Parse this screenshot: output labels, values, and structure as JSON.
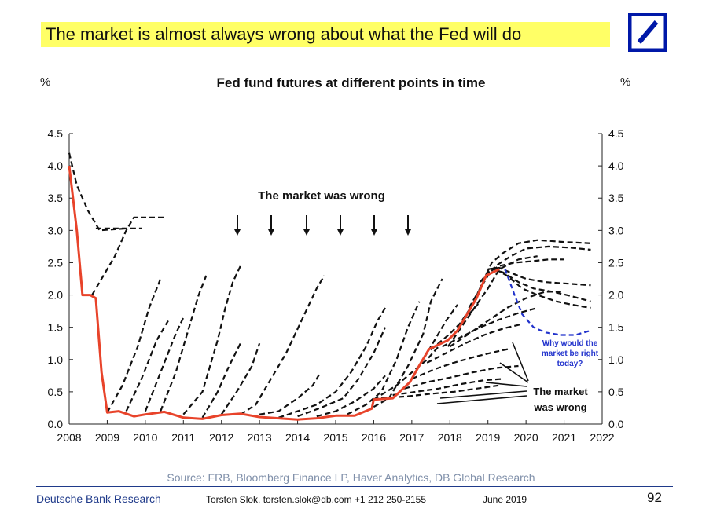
{
  "header": {
    "headline": "The market is almost always wrong about what the Fed will do"
  },
  "logo": {
    "name": "deutsche-bank-logo",
    "color": "#0018a8"
  },
  "chart_data": {
    "type": "line",
    "title": "Fed fund futures at different points in time",
    "ylabel_left": "%",
    "ylabel_right": "%",
    "xlim": [
      2008,
      2022
    ],
    "ylim": [
      0,
      4.5
    ],
    "x_ticks": [
      "2008",
      "2009",
      "2010",
      "2011",
      "2012",
      "2013",
      "2014",
      "2015",
      "2016",
      "2017",
      "2018",
      "2019",
      "2020",
      "2021",
      "2022"
    ],
    "y_ticks": [
      "0.0",
      "0.5",
      "1.0",
      "1.5",
      "2.0",
      "2.5",
      "3.0",
      "3.5",
      "4.0",
      "4.5"
    ],
    "grid": false,
    "colors": {
      "actual": "#e8432a",
      "futures": "#111111",
      "current": "#2233cc"
    },
    "actual": [
      [
        2008.0,
        4.0
      ],
      [
        2008.2,
        3.0
      ],
      [
        2008.35,
        2.0
      ],
      [
        2008.55,
        2.0
      ],
      [
        2008.7,
        1.95
      ],
      [
        2008.85,
        0.8
      ],
      [
        2009.0,
        0.18
      ],
      [
        2009.3,
        0.2
      ],
      [
        2009.7,
        0.12
      ],
      [
        2010.0,
        0.15
      ],
      [
        2010.5,
        0.19
      ],
      [
        2011.0,
        0.1
      ],
      [
        2011.5,
        0.08
      ],
      [
        2012.0,
        0.14
      ],
      [
        2012.5,
        0.16
      ],
      [
        2013.0,
        0.11
      ],
      [
        2013.5,
        0.09
      ],
      [
        2014.0,
        0.07
      ],
      [
        2014.5,
        0.09
      ],
      [
        2015.0,
        0.13
      ],
      [
        2015.5,
        0.13
      ],
      [
        2015.95,
        0.24
      ],
      [
        2016.0,
        0.38
      ],
      [
        2016.5,
        0.4
      ],
      [
        2016.95,
        0.65
      ],
      [
        2017.2,
        0.91
      ],
      [
        2017.45,
        1.16
      ],
      [
        2017.95,
        1.3
      ],
      [
        2018.2,
        1.45
      ],
      [
        2018.45,
        1.7
      ],
      [
        2018.7,
        1.95
      ],
      [
        2018.95,
        2.3
      ],
      [
        2019.3,
        2.4
      ]
    ],
    "futures_paths": [
      [
        [
          2008.0,
          4.2
        ],
        [
          2008.2,
          3.7
        ],
        [
          2008.5,
          3.3
        ],
        [
          2008.8,
          3.0
        ],
        [
          2009.5,
          3.03
        ]
      ],
      [
        [
          2008.7,
          3.03
        ],
        [
          2009.5,
          3.03
        ],
        [
          2009.9,
          3.03
        ]
      ],
      [
        [
          2008.6,
          2.0
        ],
        [
          2008.9,
          2.3
        ],
        [
          2009.2,
          2.6
        ],
        [
          2009.5,
          3.0
        ],
        [
          2009.7,
          3.2
        ],
        [
          2010.5,
          3.2
        ]
      ],
      [
        [
          2009.0,
          0.18
        ],
        [
          2009.4,
          0.6
        ],
        [
          2009.8,
          1.2
        ],
        [
          2010.1,
          1.8
        ],
        [
          2010.4,
          2.25
        ]
      ],
      [
        [
          2009.5,
          0.2
        ],
        [
          2009.9,
          0.7
        ],
        [
          2010.3,
          1.3
        ],
        [
          2010.6,
          1.6
        ]
      ],
      [
        [
          2010.0,
          0.2
        ],
        [
          2010.4,
          0.8
        ],
        [
          2010.8,
          1.4
        ],
        [
          2011.0,
          1.65
        ]
      ],
      [
        [
          2010.4,
          0.2
        ],
        [
          2010.8,
          0.8
        ],
        [
          2011.1,
          1.4
        ],
        [
          2011.4,
          2.0
        ],
        [
          2011.6,
          2.3
        ]
      ],
      [
        [
          2011.0,
          0.15
        ],
        [
          2011.5,
          0.5
        ],
        [
          2011.9,
          1.3
        ],
        [
          2012.1,
          1.8
        ],
        [
          2012.3,
          2.2
        ],
        [
          2012.5,
          2.45
        ]
      ],
      [
        [
          2011.5,
          0.1
        ],
        [
          2011.9,
          0.5
        ],
        [
          2012.2,
          0.9
        ],
        [
          2012.5,
          1.25
        ]
      ],
      [
        [
          2012.0,
          0.15
        ],
        [
          2012.4,
          0.5
        ],
        [
          2012.8,
          0.9
        ],
        [
          2013.0,
          1.25
        ]
      ],
      [
        [
          2012.5,
          0.15
        ],
        [
          2012.9,
          0.3
        ],
        [
          2013.3,
          0.7
        ],
        [
          2013.7,
          1.1
        ],
        [
          2014.1,
          1.6
        ],
        [
          2014.5,
          2.1
        ],
        [
          2014.7,
          2.3
        ]
      ],
      [
        [
          2013.0,
          0.15
        ],
        [
          2013.5,
          0.2
        ],
        [
          2014.0,
          0.4
        ],
        [
          2014.4,
          0.6
        ],
        [
          2014.6,
          0.8
        ]
      ],
      [
        [
          2013.5,
          0.1
        ],
        [
          2014.0,
          0.2
        ],
        [
          2014.5,
          0.3
        ],
        [
          2015.0,
          0.5
        ],
        [
          2015.4,
          0.8
        ],
        [
          2015.8,
          1.2
        ],
        [
          2016.1,
          1.6
        ],
        [
          2016.3,
          1.8
        ]
      ],
      [
        [
          2014.0,
          0.12
        ],
        [
          2014.6,
          0.25
        ],
        [
          2015.2,
          0.4
        ],
        [
          2015.6,
          0.7
        ],
        [
          2016.0,
          1.1
        ],
        [
          2016.3,
          1.5
        ]
      ],
      [
        [
          2014.5,
          0.12
        ],
        [
          2015.0,
          0.2
        ],
        [
          2015.5,
          0.35
        ],
        [
          2016.0,
          0.55
        ],
        [
          2016.3,
          0.75
        ]
      ],
      [
        [
          2015.3,
          0.15
        ],
        [
          2015.8,
          0.3
        ],
        [
          2016.2,
          0.5
        ],
        [
          2016.6,
          1.0
        ],
        [
          2016.9,
          1.5
        ],
        [
          2017.2,
          1.9
        ]
      ],
      [
        [
          2015.8,
          0.2
        ],
        [
          2016.4,
          0.4
        ],
        [
          2016.9,
          0.9
        ],
        [
          2017.3,
          1.4
        ],
        [
          2017.5,
          1.9
        ],
        [
          2017.8,
          2.25
        ]
      ],
      [
        [
          2016.0,
          0.38
        ],
        [
          2016.6,
          0.6
        ],
        [
          2017.0,
          0.8
        ],
        [
          2017.4,
          1.0
        ],
        [
          2017.7,
          1.2
        ]
      ],
      [
        [
          2017.2,
          0.9
        ],
        [
          2017.5,
          1.2
        ],
        [
          2017.9,
          1.6
        ],
        [
          2018.2,
          1.85
        ]
      ],
      [
        [
          2017.5,
          1.15
        ],
        [
          2018.0,
          1.4
        ],
        [
          2018.5,
          1.7
        ],
        [
          2018.8,
          1.9
        ]
      ],
      [
        [
          2017.95,
          1.2
        ],
        [
          2018.3,
          1.5
        ],
        [
          2018.7,
          1.85
        ],
        [
          2019.0,
          2.1
        ],
        [
          2019.3,
          2.4
        ],
        [
          2019.8,
          2.55
        ],
        [
          2020.3,
          2.6
        ]
      ],
      [
        [
          2018.2,
          1.5
        ],
        [
          2018.6,
          1.85
        ],
        [
          2018.9,
          2.25
        ],
        [
          2019.1,
          2.5
        ],
        [
          2019.4,
          2.65
        ],
        [
          2019.8,
          2.8
        ],
        [
          2020.3,
          2.85
        ],
        [
          2021.0,
          2.82
        ],
        [
          2021.7,
          2.8
        ]
      ],
      [
        [
          2018.5,
          1.8
        ],
        [
          2018.8,
          2.1
        ],
        [
          2019.0,
          2.3
        ],
        [
          2019.2,
          2.45
        ],
        [
          2019.6,
          2.6
        ],
        [
          2020.0,
          2.72
        ],
        [
          2020.6,
          2.75
        ],
        [
          2021.2,
          2.73
        ],
        [
          2021.7,
          2.7
        ]
      ],
      [
        [
          2018.8,
          2.2
        ],
        [
          2019.0,
          2.35
        ],
        [
          2019.3,
          2.45
        ],
        [
          2019.7,
          2.5
        ],
        [
          2020.1,
          2.52
        ],
        [
          2020.6,
          2.55
        ],
        [
          2021.0,
          2.55
        ]
      ],
      [
        [
          2019.0,
          2.4
        ],
        [
          2019.3,
          2.42
        ],
        [
          2019.7,
          2.32
        ],
        [
          2020.0,
          2.25
        ],
        [
          2020.5,
          2.2
        ],
        [
          2021.0,
          2.18
        ],
        [
          2021.7,
          2.15
        ]
      ],
      [
        [
          2019.1,
          2.4
        ],
        [
          2019.4,
          2.35
        ],
        [
          2019.8,
          2.2
        ],
        [
          2020.2,
          2.1
        ],
        [
          2020.7,
          2.05
        ],
        [
          2021.2,
          1.98
        ],
        [
          2021.7,
          1.9
        ]
      ],
      [
        [
          2019.2,
          2.4
        ],
        [
          2019.5,
          2.3
        ],
        [
          2019.9,
          2.1
        ],
        [
          2020.3,
          2.0
        ],
        [
          2020.8,
          1.9
        ],
        [
          2021.2,
          1.85
        ],
        [
          2021.7,
          1.8
        ]
      ],
      [
        [
          2018.0,
          1.2
        ],
        [
          2018.5,
          1.4
        ],
        [
          2019.0,
          1.6
        ],
        [
          2019.5,
          1.8
        ],
        [
          2020.0,
          1.95
        ],
        [
          2020.5,
          2.05
        ],
        [
          2021.0,
          2.05
        ]
      ],
      [
        [
          2017.8,
          1.2
        ],
        [
          2018.3,
          1.35
        ],
        [
          2018.8,
          1.5
        ],
        [
          2019.3,
          1.62
        ],
        [
          2019.8,
          1.72
        ],
        [
          2020.3,
          1.8
        ]
      ],
      [
        [
          2017.4,
          0.95
        ],
        [
          2017.9,
          1.1
        ],
        [
          2018.4,
          1.25
        ],
        [
          2018.9,
          1.38
        ],
        [
          2019.4,
          1.48
        ],
        [
          2019.9,
          1.55
        ]
      ],
      [
        [
          2017.0,
          0.7
        ],
        [
          2017.6,
          0.85
        ],
        [
          2018.1,
          0.95
        ],
        [
          2018.7,
          1.05
        ],
        [
          2019.2,
          1.12
        ],
        [
          2019.6,
          1.17
        ]
      ],
      [
        [
          2016.8,
          0.55
        ],
        [
          2017.4,
          0.65
        ],
        [
          2018.0,
          0.72
        ],
        [
          2018.6,
          0.8
        ],
        [
          2019.2,
          0.87
        ],
        [
          2019.8,
          0.9
        ]
      ],
      [
        [
          2016.5,
          0.45
        ],
        [
          2017.1,
          0.5
        ],
        [
          2017.7,
          0.55
        ],
        [
          2018.3,
          0.62
        ],
        [
          2018.9,
          0.68
        ],
        [
          2019.4,
          0.7
        ]
      ],
      [
        [
          2016.2,
          0.4
        ],
        [
          2016.9,
          0.43
        ],
        [
          2017.5,
          0.47
        ],
        [
          2018.1,
          0.5
        ],
        [
          2018.7,
          0.55
        ],
        [
          2019.3,
          0.6
        ]
      ]
    ],
    "current_path": [
      [
        2019.45,
        2.4
      ],
      [
        2019.7,
        2.0
      ],
      [
        2019.9,
        1.7
      ],
      [
        2020.2,
        1.5
      ],
      [
        2020.5,
        1.42
      ],
      [
        2020.9,
        1.38
      ],
      [
        2021.3,
        1.38
      ],
      [
        2021.7,
        1.45
      ]
    ],
    "annotations": {
      "top_label": "The market was wrong",
      "right_label_line1": "The market",
      "right_label_line2": "was wrong",
      "question_line1": "Why would the",
      "question_line2": "market be right",
      "question_line3": "today?"
    }
  },
  "footer": {
    "source": "Source: FRB, Bloomberg Finance LP, Haver Analytics, DB Global Research",
    "brand": "Deutsche Bank Research",
    "author": "Torsten Slok, torsten.slok@db.com +1 212 250-2155",
    "date": "June 2019",
    "page": "92"
  }
}
